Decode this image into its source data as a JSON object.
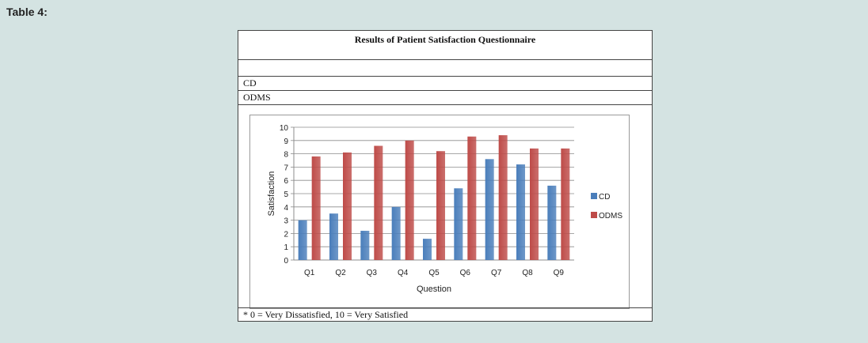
{
  "page": {
    "label": "Table 4:",
    "table_title": "Results of Patient Satisfaction Questionnaire",
    "row_cd": "CD",
    "row_odms": "ODMS",
    "footnote": "* 0 = Very Dissatisfied, 10 = Very Satisfied"
  },
  "chart_data": {
    "type": "bar",
    "categories": [
      "Q1",
      "Q2",
      "Q3",
      "Q4",
      "Q5",
      "Q6",
      "Q7",
      "Q8",
      "Q9"
    ],
    "series": [
      {
        "name": "CD",
        "color": "#4a7ebb",
        "values": [
          3.0,
          3.5,
          2.2,
          4.0,
          1.6,
          5.4,
          7.6,
          7.2,
          5.6
        ]
      },
      {
        "name": "ODMS",
        "color": "#be4b48",
        "values": [
          7.8,
          8.1,
          8.6,
          9.0,
          8.2,
          9.3,
          9.4,
          8.4,
          8.4
        ]
      }
    ],
    "xlabel": "Question",
    "ylabel": "Satisfaction",
    "ylim": [
      0,
      10
    ],
    "yticks": [
      "0",
      "1",
      "2",
      "3",
      "4",
      "5",
      "6",
      "7",
      "8",
      "9",
      "10"
    ],
    "grid": true,
    "legend_position": "right"
  }
}
